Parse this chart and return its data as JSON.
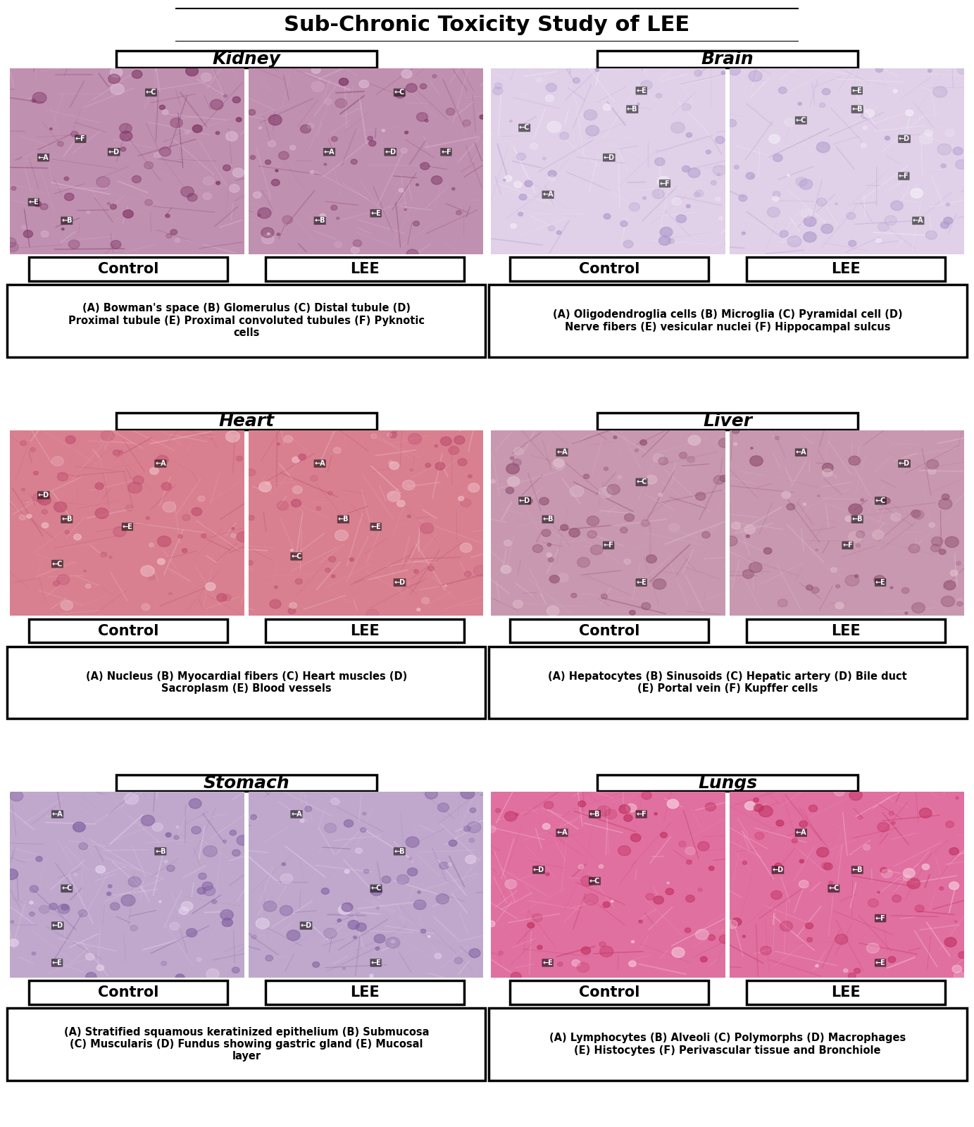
{
  "title": "Sub-Chronic Toxicity Study of LEE",
  "organs": [
    "Kidney",
    "Brain",
    "Heart",
    "Liver",
    "Stomach",
    "Lungs"
  ],
  "descriptions": {
    "Kidney": "(A) Bowman's space (B) Glomerulus (C) Distal tubule (D)\nProximal tubule (E) Proximal convoluted tubules (F) Pyknotic\ncells",
    "Brain": "(A) Oligodendroglia cells (B) Microglia (C) Pyramidal cell (D)\nNerve fibers (E) vesicular nuclei (F) Hippocampal sulcus",
    "Heart": "(A) Nucleus (B) Myocardial fibers (C) Heart muscles (D)\nSacroplasm (E) Blood vessels",
    "Liver": "(A) Hepatocytes (B) Sinusoids (C) Hepatic artery (D) Bile duct\n(E) Portal vein (F) Kupffer cells",
    "Stomach": "(A) Stratified squamous keratinized epithelium (B) Submucosa\n(C) Muscularis (D) Fundus showing gastric gland (E) Mucosal\nlayer",
    "Lungs": "(A) Lymphocytes (B) Alveoli (C) Polymorphs (D) Macrophages\n(E) Histocytes (F) Perivascular tissue and Bronchiole"
  },
  "he_colors": {
    "Kidney": [
      "#c090b0",
      "#7a3060",
      "#e0c0d8",
      "#ffffff"
    ],
    "Brain": [
      "#e0d0e8",
      "#b09acc",
      "#f5f0f8",
      "#ffffff"
    ],
    "Heart": [
      "#d88090",
      "#c05070",
      "#f0c0c8",
      "#ffffff"
    ],
    "Liver": [
      "#c898b0",
      "#905070",
      "#e0c0cc",
      "#ffffff"
    ],
    "Stomach": [
      "#c0a8cc",
      "#8060a0",
      "#e8d8f0",
      "#ffffff"
    ],
    "Lungs": [
      "#e070a0",
      "#c03060",
      "#f8d0e0",
      "#ffffff"
    ]
  },
  "background_color": "#ffffff",
  "title_fontsize": 22,
  "organ_fontsize": 18,
  "ctrl_lee_fontsize": 15,
  "desc_fontsize": 10.5
}
